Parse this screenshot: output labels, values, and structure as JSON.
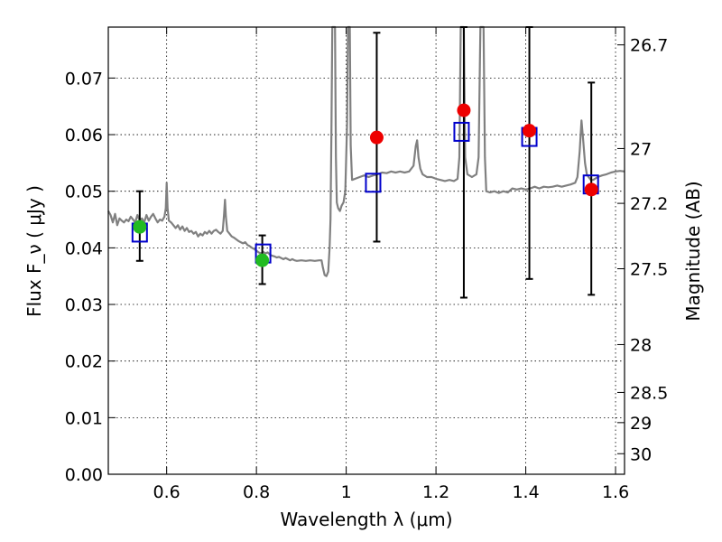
{
  "chart_data": {
    "type": "scatter",
    "xlabel": "Wavelength  λ (μm)",
    "ylabel_left": "Flux  F_ν  ( μJy )",
    "ylabel_right": "Magnitude (AB)",
    "xlim": [
      0.47,
      1.62
    ],
    "ylim": [
      0.0,
      0.079
    ],
    "x_ticks": [
      {
        "value": 0.6,
        "label": "0.6"
      },
      {
        "value": 0.8,
        "label": "0.8"
      },
      {
        "value": 1.0,
        "label": "1"
      },
      {
        "value": 1.2,
        "label": "1.2"
      },
      {
        "value": 1.4,
        "label": "1.4"
      },
      {
        "value": 1.6,
        "label": "1.6"
      }
    ],
    "y_ticks": [
      {
        "value": 0.0,
        "label": "0.00"
      },
      {
        "value": 0.01,
        "label": "0.01"
      },
      {
        "value": 0.02,
        "label": "0.02"
      },
      {
        "value": 0.03,
        "label": "0.03"
      },
      {
        "value": 0.04,
        "label": "0.04"
      },
      {
        "value": 0.05,
        "label": "0.05"
      },
      {
        "value": 0.06,
        "label": "0.06"
      },
      {
        "value": 0.07,
        "label": "0.07"
      }
    ],
    "mag_ticks": [
      {
        "mag": 26.7,
        "label": "26.7"
      },
      {
        "mag": 27,
        "label": "27"
      },
      {
        "mag": 27.2,
        "label": "27.2"
      },
      {
        "mag": 27.5,
        "label": "27.5"
      },
      {
        "mag": 28,
        "label": "28"
      },
      {
        "mag": 28.5,
        "label": "28.5"
      },
      {
        "mag": 29,
        "label": "29"
      },
      {
        "mag": 30,
        "label": "30"
      }
    ],
    "grid": true,
    "colors": {
      "spectrum": "#808080",
      "model": "#0000cc",
      "optical": "#22bb22",
      "nir": "#ee0000",
      "errorbar": "#000000"
    },
    "spectrum": [
      [
        0.47,
        0.0465
      ],
      [
        0.475,
        0.0458
      ],
      [
        0.48,
        0.0445
      ],
      [
        0.485,
        0.046
      ],
      [
        0.49,
        0.044
      ],
      [
        0.495,
        0.0452
      ],
      [
        0.5,
        0.0448
      ],
      [
        0.505,
        0.0445
      ],
      [
        0.51,
        0.045
      ],
      [
        0.515,
        0.0447
      ],
      [
        0.52,
        0.0455
      ],
      [
        0.525,
        0.045
      ],
      [
        0.53,
        0.0445
      ],
      [
        0.535,
        0.0458
      ],
      [
        0.54,
        0.0448
      ],
      [
        0.545,
        0.0452
      ],
      [
        0.55,
        0.0445
      ],
      [
        0.555,
        0.0458
      ],
      [
        0.56,
        0.0448
      ],
      [
        0.565,
        0.0455
      ],
      [
        0.57,
        0.046
      ],
      [
        0.575,
        0.0452
      ],
      [
        0.58,
        0.0445
      ],
      [
        0.585,
        0.045
      ],
      [
        0.59,
        0.0448
      ],
      [
        0.595,
        0.0455
      ],
      [
        0.598,
        0.047
      ],
      [
        0.6,
        0.0515
      ],
      [
        0.602,
        0.047
      ],
      [
        0.605,
        0.0448
      ],
      [
        0.61,
        0.0445
      ],
      [
        0.615,
        0.044
      ],
      [
        0.62,
        0.0435
      ],
      [
        0.625,
        0.044
      ],
      [
        0.63,
        0.0432
      ],
      [
        0.635,
        0.0438
      ],
      [
        0.64,
        0.043
      ],
      [
        0.645,
        0.0435
      ],
      [
        0.65,
        0.0428
      ],
      [
        0.655,
        0.043
      ],
      [
        0.66,
        0.0425
      ],
      [
        0.665,
        0.0428
      ],
      [
        0.67,
        0.042
      ],
      [
        0.675,
        0.0425
      ],
      [
        0.68,
        0.0422
      ],
      [
        0.685,
        0.0428
      ],
      [
        0.69,
        0.0425
      ],
      [
        0.695,
        0.043
      ],
      [
        0.7,
        0.0425
      ],
      [
        0.705,
        0.043
      ],
      [
        0.71,
        0.0432
      ],
      [
        0.715,
        0.0428
      ],
      [
        0.72,
        0.0425
      ],
      [
        0.725,
        0.043
      ],
      [
        0.728,
        0.046
      ],
      [
        0.73,
        0.0485
      ],
      [
        0.732,
        0.0455
      ],
      [
        0.735,
        0.043
      ],
      [
        0.74,
        0.0425
      ],
      [
        0.745,
        0.042
      ],
      [
        0.75,
        0.0418
      ],
      [
        0.755,
        0.0415
      ],
      [
        0.76,
        0.0412
      ],
      [
        0.765,
        0.041
      ],
      [
        0.77,
        0.0408
      ],
      [
        0.775,
        0.041
      ],
      [
        0.78,
        0.0405
      ],
      [
        0.785,
        0.0403
      ],
      [
        0.79,
        0.04
      ],
      [
        0.795,
        0.0398
      ],
      [
        0.8,
        0.0395
      ],
      [
        0.805,
        0.0392
      ],
      [
        0.81,
        0.039
      ],
      [
        0.815,
        0.0393
      ],
      [
        0.82,
        0.039
      ],
      [
        0.825,
        0.0392
      ],
      [
        0.83,
        0.0388
      ],
      [
        0.835,
        0.0386
      ],
      [
        0.84,
        0.0385
      ],
      [
        0.845,
        0.0383
      ],
      [
        0.85,
        0.0384
      ],
      [
        0.855,
        0.0382
      ],
      [
        0.86,
        0.038
      ],
      [
        0.865,
        0.0382
      ],
      [
        0.87,
        0.038
      ],
      [
        0.875,
        0.0378
      ],
      [
        0.88,
        0.038
      ],
      [
        0.885,
        0.0378
      ],
      [
        0.89,
        0.0377
      ],
      [
        0.9,
        0.0378
      ],
      [
        0.91,
        0.0377
      ],
      [
        0.92,
        0.0378
      ],
      [
        0.93,
        0.0377
      ],
      [
        0.94,
        0.0378
      ],
      [
        0.945,
        0.0378
      ],
      [
        0.948,
        0.0365
      ],
      [
        0.952,
        0.0352
      ],
      [
        0.956,
        0.035
      ],
      [
        0.96,
        0.0358
      ],
      [
        0.963,
        0.04
      ],
      [
        0.965,
        0.045
      ],
      [
        0.967,
        0.06
      ],
      [
        0.969,
        0.08
      ],
      [
        0.975,
        0.08
      ],
      [
        0.977,
        0.056
      ],
      [
        0.979,
        0.048
      ],
      [
        0.982,
        0.047
      ],
      [
        0.986,
        0.0465
      ],
      [
        0.99,
        0.0475
      ],
      [
        0.994,
        0.048
      ],
      [
        0.998,
        0.05
      ],
      [
        1.002,
        0.062
      ],
      [
        1.004,
        0.08
      ],
      [
        1.008,
        0.08
      ],
      [
        1.01,
        0.058
      ],
      [
        1.013,
        0.052
      ],
      [
        1.02,
        0.0522
      ],
      [
        1.03,
        0.0525
      ],
      [
        1.04,
        0.0528
      ],
      [
        1.05,
        0.0525
      ],
      [
        1.06,
        0.0528
      ],
      [
        1.07,
        0.053
      ],
      [
        1.08,
        0.0533
      ],
      [
        1.09,
        0.0532
      ],
      [
        1.1,
        0.0535
      ],
      [
        1.11,
        0.0533
      ],
      [
        1.12,
        0.0535
      ],
      [
        1.13,
        0.0533
      ],
      [
        1.14,
        0.0535
      ],
      [
        1.15,
        0.0545
      ],
      [
        1.155,
        0.058
      ],
      [
        1.158,
        0.059
      ],
      [
        1.161,
        0.056
      ],
      [
        1.165,
        0.054
      ],
      [
        1.17,
        0.053
      ],
      [
        1.18,
        0.0525
      ],
      [
        1.19,
        0.0525
      ],
      [
        1.2,
        0.0522
      ],
      [
        1.21,
        0.052
      ],
      [
        1.22,
        0.0518
      ],
      [
        1.23,
        0.052
      ],
      [
        1.24,
        0.0518
      ],
      [
        1.248,
        0.0522
      ],
      [
        1.252,
        0.056
      ],
      [
        1.255,
        0.08
      ],
      [
        1.262,
        0.08
      ],
      [
        1.265,
        0.056
      ],
      [
        1.27,
        0.053
      ],
      [
        1.28,
        0.0525
      ],
      [
        1.29,
        0.053
      ],
      [
        1.295,
        0.056
      ],
      [
        1.299,
        0.08
      ],
      [
        1.306,
        0.08
      ],
      [
        1.309,
        0.056
      ],
      [
        1.312,
        0.05
      ],
      [
        1.32,
        0.0498
      ],
      [
        1.33,
        0.05
      ],
      [
        1.34,
        0.0497
      ],
      [
        1.35,
        0.05
      ],
      [
        1.36,
        0.0498
      ],
      [
        1.37,
        0.0505
      ],
      [
        1.38,
        0.0503
      ],
      [
        1.39,
        0.0505
      ],
      [
        1.4,
        0.0503
      ],
      [
        1.41,
        0.0505
      ],
      [
        1.42,
        0.0508
      ],
      [
        1.43,
        0.0505
      ],
      [
        1.44,
        0.0508
      ],
      [
        1.45,
        0.0507
      ],
      [
        1.46,
        0.0508
      ],
      [
        1.47,
        0.051
      ],
      [
        1.48,
        0.0508
      ],
      [
        1.49,
        0.051
      ],
      [
        1.5,
        0.0512
      ],
      [
        1.51,
        0.0515
      ],
      [
        1.515,
        0.0525
      ],
      [
        1.52,
        0.057
      ],
      [
        1.524,
        0.0625
      ],
      [
        1.528,
        0.059
      ],
      [
        1.532,
        0.055
      ],
      [
        1.536,
        0.053
      ],
      [
        1.54,
        0.0525
      ],
      [
        1.545,
        0.052
      ],
      [
        1.55,
        0.052
      ],
      [
        1.56,
        0.0525
      ],
      [
        1.57,
        0.0528
      ],
      [
        1.58,
        0.053
      ],
      [
        1.59,
        0.0533
      ],
      [
        1.6,
        0.0535
      ],
      [
        1.61,
        0.0536
      ],
      [
        1.62,
        0.0535
      ]
    ],
    "model_points": [
      {
        "x": 0.54,
        "y": 0.0427
      },
      {
        "x": 0.815,
        "y": 0.039
      },
      {
        "x": 1.06,
        "y": 0.0515
      },
      {
        "x": 1.257,
        "y": 0.0605
      },
      {
        "x": 1.408,
        "y": 0.0596
      },
      {
        "x": 1.545,
        "y": 0.0512
      }
    ],
    "optical_points": [
      {
        "x": 0.54,
        "y": 0.0437,
        "ylow": 0.0377,
        "yhigh": 0.05
      },
      {
        "x": 0.813,
        "y": 0.0378,
        "ylow": 0.0336,
        "yhigh": 0.0422
      }
    ],
    "nir_points": [
      {
        "x": 1.068,
        "y": 0.0595,
        "ylow": 0.0411,
        "yhigh": 0.078
      },
      {
        "x": 1.262,
        "y": 0.0643,
        "ylow": 0.0312,
        "yhigh": 0.079
      },
      {
        "x": 1.408,
        "y": 0.0607,
        "ylow": 0.0345,
        "yhigh": 0.079
      },
      {
        "x": 1.546,
        "y": 0.0503,
        "ylow": 0.0317,
        "yhigh": 0.0692
      }
    ]
  }
}
